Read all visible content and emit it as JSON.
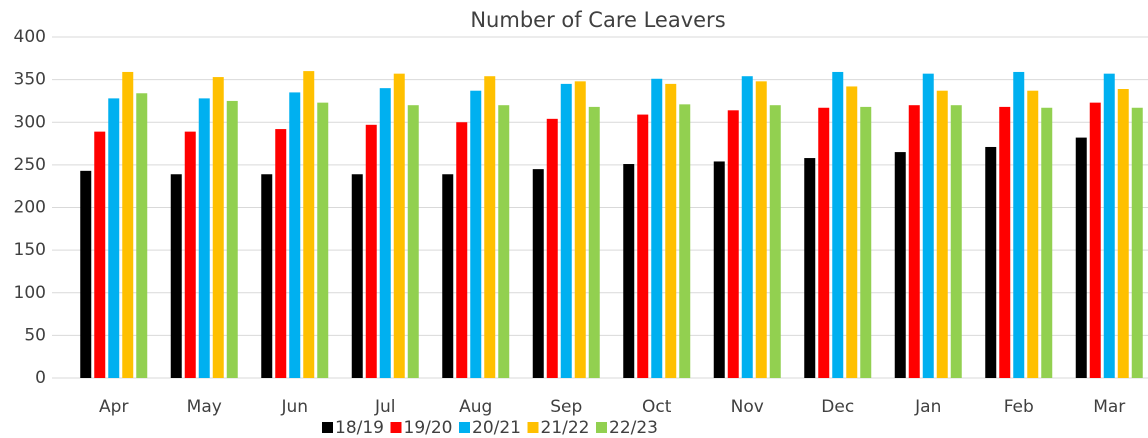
{
  "chart_data": {
    "type": "bar",
    "title": "Number of Care Leavers",
    "categories": [
      "Apr",
      "May",
      "Jun",
      "Jul",
      "Aug",
      "Sep",
      "Oct",
      "Nov",
      "Dec",
      "Jan",
      "Feb",
      "Mar"
    ],
    "series": [
      {
        "name": "18/19",
        "color": "#000000",
        "values": [
          243,
          239,
          239,
          239,
          239,
          245,
          251,
          254,
          258,
          265,
          271,
          282
        ]
      },
      {
        "name": "19/20",
        "color": "#ff0000",
        "values": [
          289,
          289,
          292,
          297,
          300,
          304,
          309,
          314,
          317,
          320,
          318,
          323
        ]
      },
      {
        "name": "20/21",
        "color": "#00b0f0",
        "values": [
          328,
          328,
          335,
          340,
          337,
          345,
          351,
          354,
          359,
          357,
          359,
          357
        ]
      },
      {
        "name": "21/22",
        "color": "#ffc000",
        "values": [
          359,
          353,
          360,
          357,
          354,
          348,
          345,
          348,
          342,
          337,
          337,
          339
        ]
      },
      {
        "name": "22/23",
        "color": "#92d050",
        "values": [
          334,
          325,
          323,
          320,
          320,
          318,
          321,
          320,
          318,
          320,
          317,
          317
        ]
      }
    ],
    "ylim": [
      0,
      400
    ],
    "yticks": [
      0,
      50,
      100,
      150,
      200,
      250,
      300,
      350,
      400
    ],
    "grid": true,
    "legend": "bottom"
  }
}
